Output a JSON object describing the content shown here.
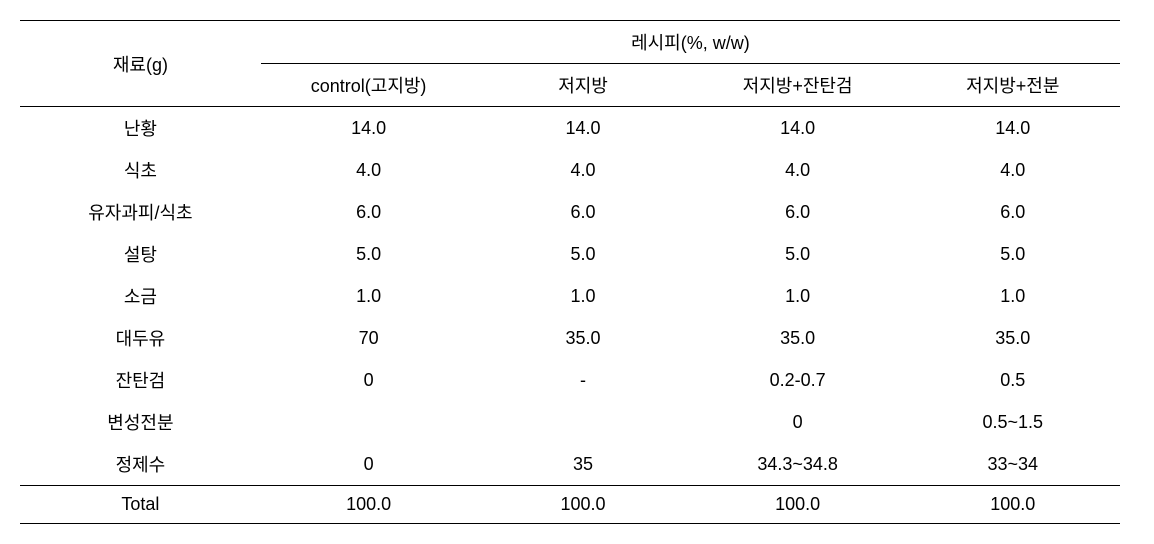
{
  "header": {
    "ingredient_label": "재료(g)",
    "recipe_label": "레시피(%, w/w)",
    "columns": [
      "control(고지방)",
      "저지방",
      "저지방+잔탄검",
      "저지방+전분"
    ]
  },
  "rows": [
    {
      "ingredient": "난황",
      "values": [
        "14.0",
        "14.0",
        "14.0",
        "14.0"
      ]
    },
    {
      "ingredient": "식초",
      "values": [
        "4.0",
        "4.0",
        "4.0",
        "4.0"
      ]
    },
    {
      "ingredient": "유자과피/식초",
      "values": [
        "6.0",
        "6.0",
        "6.0",
        "6.0"
      ]
    },
    {
      "ingredient": "설탕",
      "values": [
        "5.0",
        "5.0",
        "5.0",
        "5.0"
      ]
    },
    {
      "ingredient": "소금",
      "values": [
        "1.0",
        "1.0",
        "1.0",
        "1.0"
      ]
    },
    {
      "ingredient": "대두유",
      "values": [
        "70",
        "35.0",
        "35.0",
        "35.0"
      ]
    },
    {
      "ingredient": "잔탄검",
      "values": [
        "0",
        "-",
        "0.2-0.7",
        "0.5"
      ]
    },
    {
      "ingredient": "변성전분",
      "values": [
        "",
        "",
        "0",
        "0.5~1.5"
      ]
    },
    {
      "ingredient": "정제수",
      "values": [
        "0",
        "35",
        "34.3~34.8",
        "33~34"
      ]
    }
  ],
  "total": {
    "label": "Total",
    "values": [
      "100.0",
      "100.0",
      "100.0",
      "100.0"
    ]
  },
  "style": {
    "font_size": 18,
    "border_color": "#000000",
    "background_color": "#ffffff",
    "text_color": "#000000"
  }
}
